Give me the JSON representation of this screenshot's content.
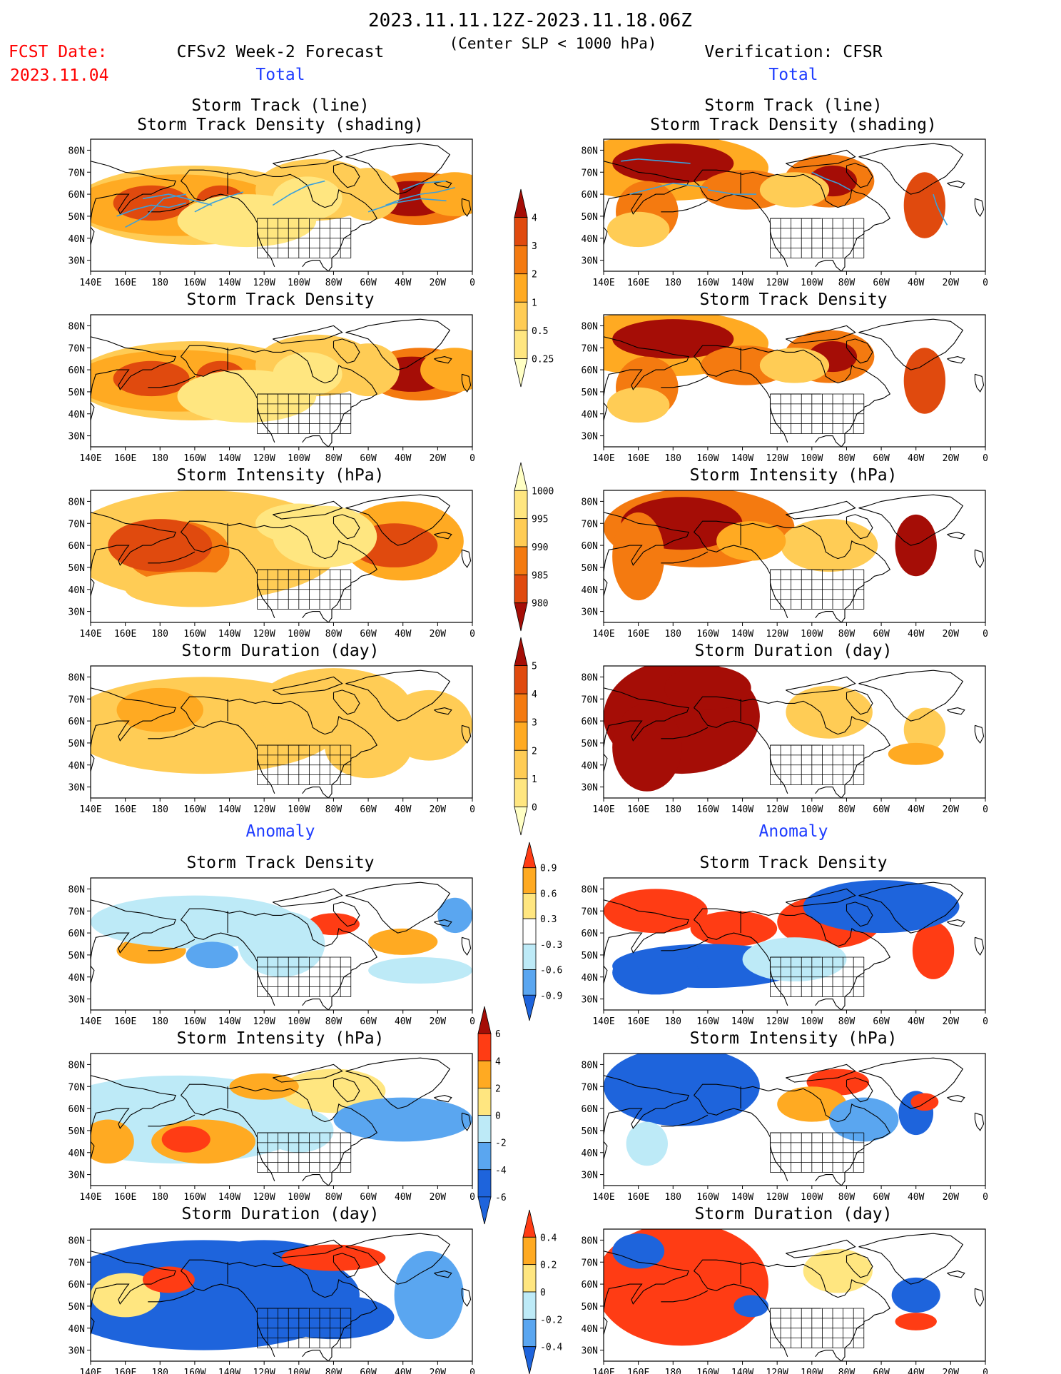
{
  "header": {
    "date_range": "2023.11.11.12Z-2023.11.18.06Z",
    "criterion": "(Center SLP < 1000 hPa)",
    "fcst_label": "FCST Date:",
    "fcst_date": "2023.11.04",
    "left_model": "CFSv2 Week-2 Forecast",
    "right_model": "Verification: CFSR",
    "total_left": "Total",
    "total_right": "Total",
    "anomaly_left": "Anomaly",
    "anomaly_right": "Anomaly"
  },
  "panel_titles": {
    "track_line": "Storm Track (line)",
    "track_shading": "Storm Track Density (shading)",
    "density": "Storm Track Density",
    "intensity": "Storm Intensity (hPa)",
    "duration": "Storm Duration (day)"
  },
  "axes": {
    "lon_ticks": [
      "140E",
      "160E",
      "180",
      "160W",
      "140W",
      "120W",
      "100W",
      "80W",
      "60W",
      "40W",
      "20W",
      "0"
    ],
    "lat_ticks": [
      "80N",
      "70N",
      "60N",
      "50N",
      "40N",
      "30N"
    ],
    "lon_range": [
      140,
      360
    ],
    "lat_range": [
      25,
      85
    ]
  },
  "colorbars": {
    "density_total": [
      "4",
      "3",
      "2",
      "1",
      "0.5",
      "0.25"
    ],
    "intensity_total": [
      "1000",
      "995",
      "990",
      "985",
      "980"
    ],
    "duration_total": [
      "5",
      "4",
      "3",
      "2",
      "1",
      "0"
    ],
    "density_anom": [
      "0.9",
      "0.6",
      "0.3",
      "-0.3",
      "-0.6",
      "-0.9"
    ],
    "intensity_anom": [
      "6",
      "4",
      "2",
      "0",
      "-2",
      "-4",
      "-6"
    ],
    "duration_anom": [
      "0.4",
      "0.2",
      "0",
      "-0.2",
      "-0.4"
    ]
  },
  "colors": {
    "title_red": "#ff0000",
    "label_blue": "#1e3cff",
    "seq": [
      "#ffffc4",
      "#ffe680",
      "#ffcc55",
      "#ffaa22",
      "#f47a10",
      "#e04a0e",
      "#a50d06"
    ],
    "div_pos": [
      "#ffe680",
      "#ffaa22",
      "#ff3c14"
    ],
    "div_neg": [
      "#bdeaf7",
      "#5aa6f0",
      "#1e64dc"
    ],
    "track_line": "#3aa0dc"
  }
}
